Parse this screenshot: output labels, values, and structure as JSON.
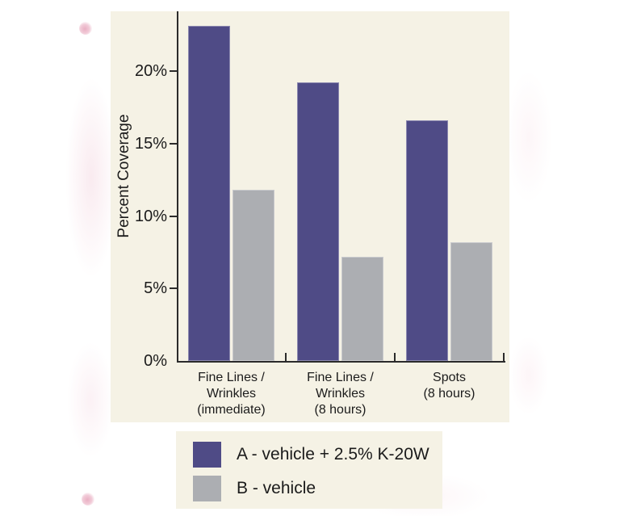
{
  "page": {
    "background": "#ffffff"
  },
  "chart_data": {
    "type": "bar",
    "title": "",
    "xlabel": "",
    "ylabel": "Percent Coverage",
    "categories": [
      {
        "lines": [
          "Fine Lines /",
          "Wrinkles",
          "(immediate)"
        ]
      },
      {
        "lines": [
          "Fine Lines /",
          "Wrinkles",
          "(8 hours)"
        ]
      },
      {
        "lines": [
          "Spots",
          "(8 hours)"
        ]
      }
    ],
    "series": [
      {
        "name": "A - vehicle + 2.5% K-20W",
        "color": "#4f4b86",
        "values": [
          23.1,
          19.2,
          16.6
        ]
      },
      {
        "name": "B - vehicle",
        "color": "#acaeb2",
        "values": [
          11.8,
          7.2,
          8.2
        ]
      }
    ],
    "yticks": [
      {
        "value": 0,
        "label": "0%"
      },
      {
        "value": 5,
        "label": "5%"
      },
      {
        "value": 10,
        "label": "10%"
      },
      {
        "value": 15,
        "label": "15%"
      },
      {
        "value": 20,
        "label": "20%"
      }
    ],
    "ylim": [
      0,
      24.1
    ],
    "grid": false,
    "legend_position": "below-chart",
    "panel_background": "#f5f2e5",
    "axis_color": "#2b2b2b",
    "text_color": "#1b1b1b"
  }
}
